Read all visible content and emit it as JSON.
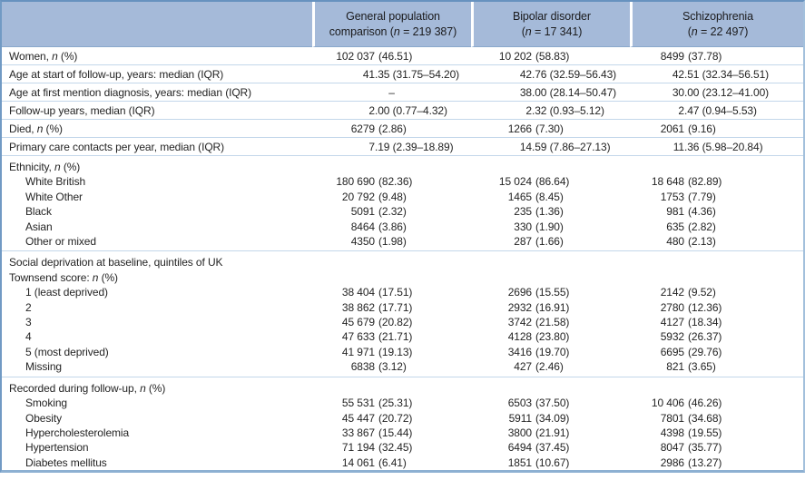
{
  "table": {
    "columns": [
      {
        "line1": "General population",
        "line2": "comparison (<i>n</i> = 219 387)"
      },
      {
        "line1": "Bipolar disorder",
        "line2": "(<i>n</i> = 17 341)"
      },
      {
        "line1": "Schizophrenia",
        "line2": "(<i>n</i> = 22 497)"
      }
    ],
    "rows": [
      {
        "type": "data",
        "label": "Women, <i>n</i> (%)",
        "values": [
          "102 037 (46.51)",
          "10 202 (58.83)",
          "8499 (37.78)"
        ]
      },
      {
        "type": "data",
        "label": "Age at start of follow-up, years: median (IQR)",
        "values": [
          "41.35 (31.75–54.20)",
          "42.76 (32.59–56.43)",
          "42.51 (32.34–56.51)"
        ]
      },
      {
        "type": "data",
        "label": "Age at first mention diagnosis, years: median (IQR)",
        "values": [
          "–",
          "38.00 (28.14–50.47)",
          "30.00 (23.12–41.00)"
        ]
      },
      {
        "type": "data",
        "label": "Follow-up years, median (IQR)",
        "values": [
          "2.00 (0.77–4.32)",
          "2.32 (0.93–5.12)",
          "2.47 (0.94–5.53)"
        ]
      },
      {
        "type": "data",
        "label": "Died, <i>n</i> (%)",
        "values": [
          "6279 (2.86)",
          "1266 (7.30)",
          "2061 (9.16)"
        ]
      },
      {
        "type": "data",
        "label": "Primary care contacts per year, median (IQR)",
        "values": [
          "7.19 (2.39–18.89)",
          "14.59 (7.86–27.13)",
          "11.36 (5.98–20.84)"
        ]
      },
      {
        "type": "section",
        "label": "Ethnicity, <i>n</i> (%)"
      },
      {
        "type": "sub",
        "label": "White British",
        "values": [
          "180 690 (82.36)",
          "15 024 (86.64)",
          "18 648 (82.89)"
        ]
      },
      {
        "type": "sub",
        "label": "White Other",
        "values": [
          "20 792 (9.48)",
          "1465 (8.45)",
          "1753 (7.79)"
        ]
      },
      {
        "type": "sub",
        "label": "Black",
        "values": [
          "5091 (2.32)",
          "235 (1.36)",
          "981 (4.36)"
        ]
      },
      {
        "type": "sub",
        "label": "Asian",
        "values": [
          "8464 (3.86)",
          "330 (1.90)",
          "635 (2.82)"
        ]
      },
      {
        "type": "sub",
        "label": "Other or mixed",
        "values": [
          "4350 (1.98)",
          "287 (1.66)",
          "480 (2.13)"
        ],
        "sep": true
      },
      {
        "type": "section",
        "label": "Social deprivation at baseline, quintiles of UK<br>Townsend score: <i>n</i> (%)"
      },
      {
        "type": "sub",
        "label": "1 (least deprived)",
        "values": [
          "38 404 (17.51)",
          "2696 (15.55)",
          "2142 (9.52)"
        ]
      },
      {
        "type": "sub",
        "label": "2",
        "values": [
          "38 862 (17.71)",
          "2932 (16.91)",
          "2780 (12.36)"
        ]
      },
      {
        "type": "sub",
        "label": "3",
        "values": [
          "45 679 (20.82)",
          "3742 (21.58)",
          "4127 (18.34)"
        ]
      },
      {
        "type": "sub",
        "label": "4",
        "values": [
          "47 633 (21.71)",
          "4128 (23.80)",
          "5932 (26.37)"
        ]
      },
      {
        "type": "sub",
        "label": "5 (most deprived)",
        "values": [
          "41 971 (19.13)",
          "3416 (19.70)",
          "6695 (29.76)"
        ]
      },
      {
        "type": "sub",
        "label": "Missing",
        "values": [
          "6838 (3.12)",
          "427 (2.46)",
          "821 (3.65)"
        ],
        "sep": true
      },
      {
        "type": "section",
        "label": "Recorded during follow-up, <i>n</i> (%)"
      },
      {
        "type": "sub",
        "label": "Smoking",
        "values": [
          "55 531 (25.31)",
          "6503 (37.50)",
          "10 406 (46.26)"
        ]
      },
      {
        "type": "sub",
        "label": "Obesity",
        "values": [
          "45 447 (20.72)",
          "5911 (34.09)",
          "7801 (34.68)"
        ]
      },
      {
        "type": "sub",
        "label": "Hypercholesterolemia",
        "values": [
          "33 867 (15.44)",
          "3800 (21.91)",
          "4398 (19.55)"
        ]
      },
      {
        "type": "sub",
        "label": "Hypertension",
        "values": [
          "71 194 (32.45)",
          "6494 (37.45)",
          "8047 (35.77)"
        ]
      },
      {
        "type": "sub",
        "label": "Diabetes mellitus",
        "values": [
          "14 061 (6.41)",
          "1851 (10.67)",
          "2986 (13.27)"
        ]
      }
    ]
  },
  "colors": {
    "header_bg": "#a5bad9",
    "outer_border": "#719ac4",
    "row_separator": "#c3d7ea",
    "text": "#242424"
  }
}
